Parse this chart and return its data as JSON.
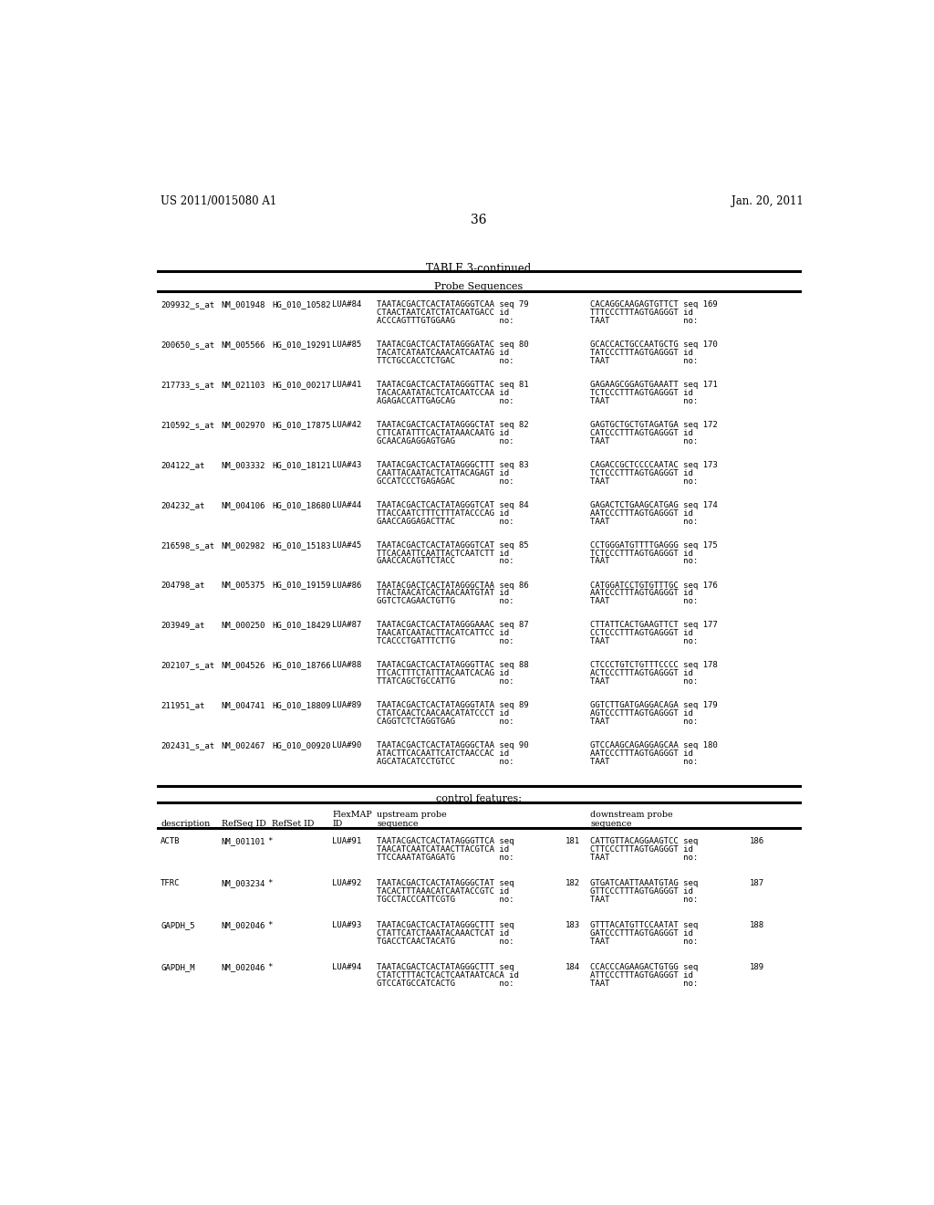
{
  "patent_num": "US 2011/0015080 A1",
  "patent_date": "Jan. 20, 2011",
  "page_num": "36",
  "table_title": "TABLE 3-continued",
  "section1_header": "Probe Sequences",
  "section2_header": "control features:",
  "bg_color": "#ffffff",
  "probe_rows": [
    {
      "id": "209932_s_at",
      "refseq": "NM_001948",
      "hg": "HG_010_10582",
      "lua": "LUA#84",
      "up1": "TAATACGACTCACTATAGGGТCAA seq 79",
      "up2": "CTAACTAATCATCTATCAATGACC id",
      "up3": "ACCCAGTTTGTGGAAG         no:",
      "dn1": "CACAGGCAAGAGTGTTCT seq 169",
      "dn2": "TTTCCCTTTAGTGAGGGT id",
      "dn3": "TAAT               no:"
    },
    {
      "id": "200650_s_at",
      "refseq": "NM_005566",
      "hg": "HG_010_19291",
      "lua": "LUA#85",
      "up1": "TAATACGACTCACTATAGGGATAC seq 80",
      "up2": "TACATCATAATCAAACATCAATAG id",
      "up3": "TTCTGCCACCTCTGAC         no:",
      "dn1": "GCACCACTGCCAATGCTG seq 170",
      "dn2": "TATCCCTTTAGTGAGGGT id",
      "dn3": "TAAT               no:"
    },
    {
      "id": "217733_s_at",
      "refseq": "NM_021103",
      "hg": "HG_010_00217",
      "lua": "LUA#41",
      "up1": "TAATACGACTCACTATAGGGTTAC seq 81",
      "up2": "TACACAATATACTCATCAATCCAA id",
      "up3": "AGAGACCATTGAGCAG         no:",
      "dn1": "GAGAAGCGGAGTGAAATT seq 171",
      "dn2": "TCTCCCTTTAGTGAGGGT id",
      "dn3": "TAAT               no:"
    },
    {
      "id": "210592_s_at",
      "refseq": "NM_002970",
      "hg": "HG_010_17875",
      "lua": "LUA#42",
      "up1": "TAATACGACTCACTATAGGGCTAT seq 82",
      "up2": "CTTCATATTTCACTATAAACAATG id",
      "up3": "GCAACAGAGGAGTGAG         no:",
      "dn1": "GAGTGCTGCTGTAGATGA seq 172",
      "dn2": "CATCCCTTTAGTGAGGGT id",
      "dn3": "TAAT               no:"
    },
    {
      "id": "204122_at",
      "refseq": "NM_003332",
      "hg": "HG_010_18121",
      "lua": "LUA#43",
      "up1": "TAATACGACTCACTATAGGGCTTT seq 83",
      "up2": "CAATTACAATACTCATTACAGAGT id",
      "up3": "GCCATCCCTGAGAGAC         no:",
      "dn1": "CAGACCGCTCCCCAATAC seq 173",
      "dn2": "TCTCCCTTTAGTGAGGGT id",
      "dn3": "TAAT               no:"
    },
    {
      "id": "204232_at",
      "refseq": "NM_004106",
      "hg": "HG_010_18680",
      "lua": "LUA#44",
      "up1": "TAATACGACTCACTATAGGGTCAT seq 84",
      "up2": "TTACCAATCTTTCTTTАTACCCAG id",
      "up3": "GAACCAGGAGACTTAC         no:",
      "dn1": "GAGACTCTGAAGCATGAG seq 174",
      "dn2": "AATCCCTTTAGTGAGGGT id",
      "dn3": "TAAT               no:"
    },
    {
      "id": "216598_s_at",
      "refseq": "NM_002982",
      "hg": "HG_010_15183",
      "lua": "LUA#45",
      "up1": "TAATACGACTCACTATAGGGTCAT seq 85",
      "up2": "TTCACAATTCAATTACTCAATCTT id",
      "up3": "GAACCACAGTTCTACC         no:",
      "dn1": "CCTGGGATGTТTTGAGGG seq 175",
      "dn2": "TCTCCCTTTAGTGAGGGT id",
      "dn3": "TAAT               no:"
    },
    {
      "id": "204798_at",
      "refseq": "NM_005375",
      "hg": "HG_010_19159",
      "lua": "LUA#86",
      "up1": "TAATACGACTCACTATAGGGCTAA seq 86",
      "up2": "TTACTAACATCACTAACAATGTAT id",
      "up3": "GGTCTCAGAACTGTTG         no:",
      "dn1": "CATGGATCCTGTGTTTGC seq 176",
      "dn2": "AATCCCTTTAGTGAGGGT id",
      "dn3": "TAAT               no:"
    },
    {
      "id": "203949_at",
      "refseq": "NM_000250",
      "hg": "HG_010_18429",
      "lua": "LUA#87",
      "up1": "TAATACGACTCACTATAGGGAAAC seq 87",
      "up2": "TAACATCAATACTTACATCATTCC id",
      "up3": "TCACCCTGATTTCTTG         no:",
      "dn1": "CTTATTCACTGAAGTTCT seq 177",
      "dn2": "CCTCCCTTTAGTGAGGGT id",
      "dn3": "TAAT               no:"
    },
    {
      "id": "202107_s_at",
      "refseq": "NM_004526",
      "hg": "HG_010_18766",
      "lua": "LUA#88",
      "up1": "TAATACGACTCACTATAGGGTTAC seq 88",
      "up2": "TTCACTTTCTATTTACAATCACAG id",
      "up3": "TTATCAGCTGCCATTG         no:",
      "dn1": "CTCCCTGTCTGTTTCCCC seq 178",
      "dn2": "ACTCCCTTTAGTGAGGGT id",
      "dn3": "TAAT               no:"
    },
    {
      "id": "211951_at",
      "refseq": "NM_004741",
      "hg": "HG_010_18809",
      "lua": "LUA#89",
      "up1": "TAATACGACTCACTATAGGGTATA seq 89",
      "up2": "CTATCAACTCAACAACATATCCCT id",
      "up3": "CAGGTCTCTAGGTGAG         no:",
      "dn1": "GGTCTTGATGAGGACAGA seq 179",
      "dn2": "AGTCCCTTTAGTGAGGGT id",
      "dn3": "TAAT               no:"
    },
    {
      "id": "202431_s_at",
      "refseq": "NM_002467",
      "hg": "HG_010_00920",
      "lua": "LUA#90",
      "up1": "TAATACGACTCACTATAGGGCTAA seq 90",
      "up2": "ATACTTCACAATTCATCTAACCAC id",
      "up3": "AGCATACATCCTGTCC         no:",
      "dn1": "GTCCAAGCAGAGGAGCAA seq 180",
      "dn2": "AATCCCTTTAGTGAGGGT id",
      "dn3": "TAAT               no:"
    }
  ],
  "control_rows": [
    {
      "id": "ACTB",
      "refseq": "NM_001101",
      "star": "*",
      "lua": "LUA#91",
      "up1": "TAATACGACTCACTATAGGGTTCA seq",
      "up1b": "181",
      "up2": "TAACATCAATCATAACTTACGTCA id",
      "up3": "TTCCAAATATGAGATG         no:",
      "dn1": "CATTGTTACAGGAAGTCC seq",
      "dn1b": "186",
      "dn2": "CTTCCCTTTAGTGAGGGT id",
      "dn3": "TAAT               no:"
    },
    {
      "id": "TFRC",
      "refseq": "NM_003234",
      "star": "*",
      "lua": "LUA#92",
      "up1": "TAATACGACTCACTATAGGGCTAT seq",
      "up1b": "182",
      "up2": "TACACTTTAAACATCAATACCGTC id",
      "up3": "TGCCTACCCATTCGTG         no:",
      "dn1": "GTGATCAATTAAATGTAG seq",
      "dn1b": "187",
      "dn2": "GTTCCCTTTAGTGAGGGT id",
      "dn3": "TAAT               no:"
    },
    {
      "id": "GAPDH_5",
      "refseq": "NM_002046",
      "star": "*",
      "lua": "LUA#93",
      "up1": "TAATACGACTCACTATAGGGCTTT seq",
      "up1b": "183",
      "up2": "CTATTCATCTAAATACAAACTCAT id",
      "up3": "TGACCTCAACTACATG         no:",
      "dn1": "GTTTACATGTTCCAATAT seq",
      "dn1b": "188",
      "dn2": "GATCCCTTTAGTGAGGGT id",
      "dn3": "TAAT               no:"
    },
    {
      "id": "GAPDH_M",
      "refseq": "NM_002046",
      "star": "*",
      "lua": "LUA#94",
      "up1": "TAATACGACTCACTATAGGGCTTT seq",
      "up1b": "184",
      "up2": "CTATCTTTACTCACTCAATAATCACA id",
      "up3": "GTCCATGCCATCACTG         no:",
      "dn1": "CCACCCAGAAGACTGTGG seq",
      "dn1b": "189",
      "dn2": "ATTCCCTTTAGTGAGGGT id",
      "dn3": "TAAT               no:"
    }
  ]
}
